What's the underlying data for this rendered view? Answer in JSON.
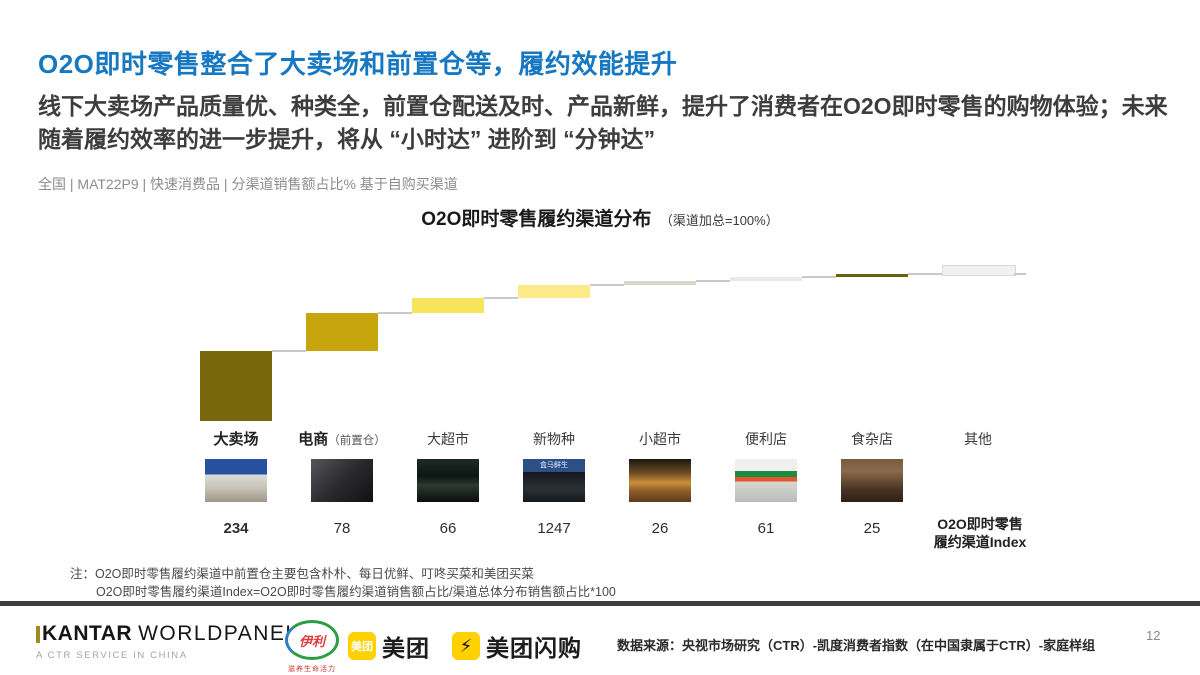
{
  "slide": {
    "title": "O2O即时零售整合了大卖场和前置仓等，履约效能提升",
    "subtitle": "线下大卖场产品质量优、种类全，前置仓配送及时、产品新鲜，提升了消费者在O2O即时零售的购物体验；未来随着履约效率的进一步提升，将从 “小时达” 进阶到 “分钟达”",
    "meta": "全国 | MAT22P9 | 快速消费品 | 分渠道销售额占比%  基于自购买渠道",
    "title_color": "#1778c2"
  },
  "chart": {
    "title": "O2O即时零售履约渠道分布",
    "title_suffix": "（渠道加总=100%）",
    "index_label_line1": "O2O即时零售",
    "index_label_line2": "履约渠道Index"
  },
  "chart_data": {
    "type": "waterfall",
    "title": "O2O即时零售履约渠道分布（渠道加总=100%）",
    "unit": "分渠道销售额占比%",
    "total_pct": 100,
    "legend": "none",
    "grid": false,
    "categories": [
      {
        "label": "大卖场",
        "bold": true,
        "share_pct": 45,
        "index": "234",
        "index_bold": true,
        "color": "#7a660d",
        "photo": "hypermarket"
      },
      {
        "label": "电商",
        "label_suffix": "（前置仓）",
        "bold": true,
        "share_pct": 24,
        "index": "78",
        "color": "#c7a60d",
        "photo": "ecommerce"
      },
      {
        "label": "大超市",
        "share_pct": 10,
        "index": "66",
        "color": "#f8e35d",
        "photo": "supermarket"
      },
      {
        "label": "新物种",
        "share_pct": 8,
        "index": "1247",
        "color": "#fbe98a",
        "photo": "new-species",
        "photo_sign": "盒马鲜生"
      },
      {
        "label": "小超市",
        "share_pct": 3,
        "index": "26",
        "color": "#d8d8c8",
        "photo": "mini-market"
      },
      {
        "label": "便利店",
        "share_pct": 2.5,
        "index": "61",
        "color": "#e9e9e5",
        "photo": "convenience"
      },
      {
        "label": "食杂店",
        "share_pct": 2,
        "index": "25",
        "color": "#6e5e10",
        "photo": "grocery"
      },
      {
        "label": "其他",
        "share_pct": 5.5,
        "index": null,
        "color": "#f1f1f1",
        "border_color": "#d8d8d8",
        "photo": null
      }
    ]
  },
  "notes": {
    "line1": "注：O2O即时零售履约渠道中前置仓主要包含朴朴、每日优鲜、叮咚买菜和美团买菜",
    "line2": "O2O即时零售履约渠道Index=O2O即时零售履约渠道销售额占比/渠道总体分布销售额占比*100"
  },
  "footer": {
    "kantar_name_1": "KANTAR",
    "kantar_name_2": "WORLDPANEL",
    "kantar_sub": "A CTR SERVICE IN CHINA",
    "yili_text": "伊利",
    "yili_tagline": "滋养生命活力",
    "meituan_badge": "美团",
    "meituan_name": "美团",
    "shangou_bolt": "⚡",
    "shangou_name": "美团闪购",
    "source": "数据来源：央视市场研究（CTR）-凯度消费者指数（在中国隶属于CTR）-家庭样组",
    "page": "12",
    "meituan_yellow": "#ffd100",
    "divider_color": "#3d3d3d"
  }
}
